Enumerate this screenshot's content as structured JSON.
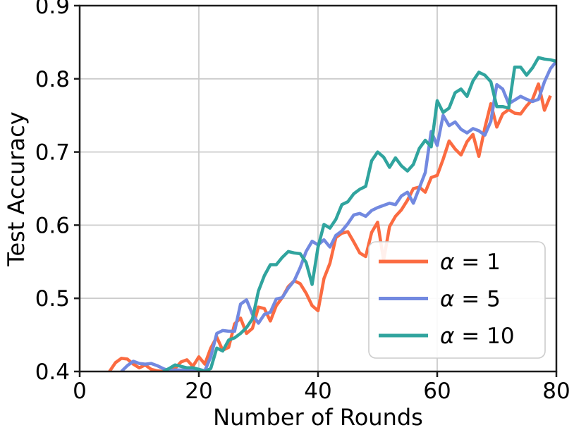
{
  "figure": {
    "background": "#ffffff",
    "spine_color": "#1c1c1c",
    "grid_color": "#cccccc",
    "legend_border_color": "#cccccc",
    "legend_background": "#ffffff"
  },
  "axes": {
    "x_label": "Number of Rounds",
    "y_label": "Test Accuracy",
    "x_tick_labels": [
      "0",
      "20",
      "40",
      "60",
      "80"
    ],
    "y_tick_labels": [
      "0.4",
      "0.5",
      "0.6",
      "0.7",
      "0.8",
      "0.9"
    ]
  },
  "legend": {
    "position": "lower right",
    "items": [
      {
        "label": "α = 1",
        "color": "#FB6B41"
      },
      {
        "label": "α = 5",
        "color": "#7289E0"
      },
      {
        "label": "α = 10",
        "color": "#30A49E"
      }
    ]
  },
  "chart_data": {
    "type": "line",
    "title": "",
    "xlabel": "Number of Rounds",
    "ylabel": "Test Accuracy",
    "xlim": [
      0,
      80
    ],
    "ylim": [
      0.4,
      0.9
    ],
    "x_ticks": [
      0,
      20,
      40,
      60,
      80
    ],
    "y_ticks": [
      0.4,
      0.5,
      0.6,
      0.7,
      0.8,
      0.9
    ],
    "grid": true,
    "legend_position": "lower right",
    "series": [
      {
        "name": "α = 1",
        "color": "#FB6B41",
        "x": [
          5,
          6,
          7,
          8,
          9,
          10,
          11,
          12,
          13,
          14,
          15,
          16,
          17,
          18,
          19,
          20,
          21,
          22,
          23,
          24,
          25,
          26,
          27,
          28,
          29,
          30,
          31,
          32,
          33,
          34,
          35,
          36,
          37,
          38,
          39,
          40,
          41,
          42,
          43,
          44,
          45,
          46,
          47,
          48,
          49,
          50,
          51,
          52,
          53,
          54,
          55,
          56,
          57,
          58,
          59,
          60,
          61,
          62,
          63,
          64,
          65,
          66,
          67,
          68,
          69,
          70,
          71,
          72,
          73,
          74,
          75,
          76,
          77,
          78,
          79
        ],
        "y": [
          0.4,
          0.412,
          0.418,
          0.417,
          0.41,
          0.405,
          0.409,
          0.403,
          0.401,
          0.4,
          0.401,
          0.404,
          0.413,
          0.416,
          0.407,
          0.42,
          0.41,
          0.432,
          0.447,
          0.429,
          0.433,
          0.465,
          0.473,
          0.452,
          0.459,
          0.488,
          0.486,
          0.469,
          0.49,
          0.501,
          0.516,
          0.524,
          0.52,
          0.507,
          0.49,
          0.483,
          0.527,
          0.548,
          0.583,
          0.589,
          0.591,
          0.577,
          0.562,
          0.557,
          0.59,
          0.604,
          0.552,
          0.598,
          0.612,
          0.621,
          0.634,
          0.65,
          0.652,
          0.645,
          0.665,
          0.668,
          0.69,
          0.715,
          0.704,
          0.696,
          0.714,
          0.724,
          0.694,
          0.733,
          0.766,
          0.734,
          0.752,
          0.758,
          0.753,
          0.752,
          0.763,
          0.772,
          0.793,
          0.757,
          0.777
        ]
      },
      {
        "name": "α = 5",
        "color": "#7289E0",
        "x": [
          7,
          8,
          9,
          10,
          11,
          12,
          13,
          14,
          15,
          16,
          17,
          18,
          19,
          20,
          21,
          22,
          23,
          24,
          25,
          26,
          27,
          28,
          29,
          30,
          31,
          32,
          33,
          34,
          35,
          36,
          37,
          38,
          39,
          40,
          41,
          42,
          43,
          44,
          45,
          46,
          47,
          48,
          49,
          50,
          51,
          52,
          53,
          54,
          55,
          56,
          57,
          58,
          59,
          60,
          61,
          62,
          63,
          64,
          65,
          66,
          67,
          68,
          69,
          70,
          71,
          72,
          73,
          74,
          75,
          76,
          77,
          78,
          79,
          80
        ],
        "y": [
          0.4,
          0.408,
          0.414,
          0.411,
          0.41,
          0.411,
          0.408,
          0.404,
          0.401,
          0.402,
          0.402,
          0.402,
          0.402,
          0.403,
          0.401,
          0.42,
          0.452,
          0.456,
          0.455,
          0.455,
          0.492,
          0.498,
          0.478,
          0.466,
          0.478,
          0.481,
          0.499,
          0.501,
          0.514,
          0.524,
          0.542,
          0.564,
          0.578,
          0.573,
          0.58,
          0.57,
          0.586,
          0.592,
          0.602,
          0.614,
          0.616,
          0.612,
          0.62,
          0.624,
          0.627,
          0.63,
          0.628,
          0.64,
          0.645,
          0.63,
          0.651,
          0.672,
          0.728,
          0.709,
          0.75,
          0.736,
          0.741,
          0.731,
          0.726,
          0.732,
          0.729,
          0.723,
          0.742,
          0.792,
          0.786,
          0.766,
          0.771,
          0.776,
          0.772,
          0.769,
          0.772,
          0.796,
          0.814,
          0.824
        ]
      },
      {
        "name": "α = 10",
        "color": "#30A49E",
        "x": [
          14,
          15,
          16,
          17,
          18,
          19,
          20,
          21,
          22,
          23,
          24,
          25,
          26,
          27,
          28,
          29,
          30,
          31,
          32,
          33,
          34,
          35,
          36,
          37,
          38,
          39,
          40,
          41,
          42,
          43,
          44,
          45,
          46,
          47,
          48,
          49,
          50,
          51,
          52,
          53,
          54,
          55,
          56,
          57,
          58,
          59,
          60,
          61,
          62,
          63,
          64,
          65,
          66,
          67,
          68,
          69,
          70,
          71,
          72,
          73,
          74,
          75,
          76,
          77,
          78,
          79,
          80
        ],
        "y": [
          0.4,
          0.404,
          0.409,
          0.407,
          0.405,
          0.405,
          0.403,
          0.4,
          0.404,
          0.432,
          0.428,
          0.443,
          0.446,
          0.452,
          0.46,
          0.472,
          0.51,
          0.531,
          0.546,
          0.546,
          0.556,
          0.564,
          0.562,
          0.561,
          0.549,
          0.519,
          0.57,
          0.601,
          0.596,
          0.608,
          0.628,
          0.632,
          0.643,
          0.649,
          0.653,
          0.688,
          0.7,
          0.693,
          0.679,
          0.692,
          0.681,
          0.674,
          0.683,
          0.705,
          0.716,
          0.707,
          0.77,
          0.754,
          0.76,
          0.781,
          0.786,
          0.776,
          0.797,
          0.809,
          0.805,
          0.796,
          0.762,
          0.762,
          0.76,
          0.816,
          0.816,
          0.805,
          0.815,
          0.829,
          0.827,
          0.826,
          0.824
        ]
      }
    ]
  }
}
